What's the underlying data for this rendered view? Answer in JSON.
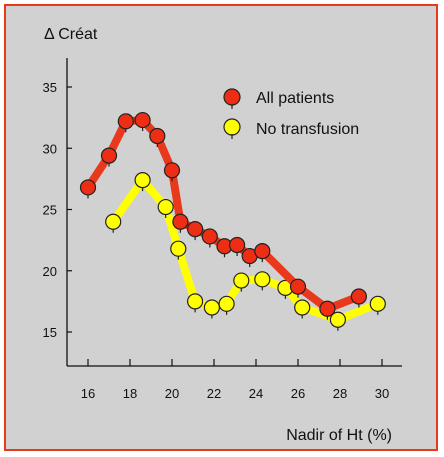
{
  "chart_data": {
    "type": "line",
    "title": "",
    "ylabel": "Δ Créat",
    "xlabel": "Nadir of Ht (%)",
    "xlim": [
      15,
      31
    ],
    "ylim": [
      12.5,
      37.5
    ],
    "x_ticks": [
      16,
      18,
      20,
      22,
      24,
      26,
      28,
      30
    ],
    "y_ticks": [
      15,
      20,
      25,
      30,
      35
    ],
    "x_tick_labels": [
      "16",
      "18",
      "20",
      "22",
      "24",
      "26",
      "28",
      "30"
    ],
    "y_tick_labels": [
      "15",
      "20",
      "25",
      "30",
      "35"
    ],
    "legend_position": "top-right",
    "series": [
      {
        "name": "All patients",
        "color": "#e8391d",
        "marker_color": "#ee2e14",
        "points": [
          {
            "x": 16.0,
            "y": 26.8
          },
          {
            "x": 17.0,
            "y": 29.4
          },
          {
            "x": 17.8,
            "y": 32.2
          },
          {
            "x": 18.6,
            "y": 32.3
          },
          {
            "x": 19.3,
            "y": 31.0
          },
          {
            "x": 20.0,
            "y": 28.2
          },
          {
            "x": 20.4,
            "y": 24.0
          },
          {
            "x": 21.1,
            "y": 23.4
          },
          {
            "x": 21.8,
            "y": 22.8
          },
          {
            "x": 22.5,
            "y": 22.0
          },
          {
            "x": 23.1,
            "y": 22.1
          },
          {
            "x": 23.7,
            "y": 21.2
          },
          {
            "x": 24.3,
            "y": 21.6
          },
          {
            "x": 26.0,
            "y": 18.7
          },
          {
            "x": 27.4,
            "y": 16.9
          },
          {
            "x": 28.9,
            "y": 17.9
          }
        ]
      },
      {
        "name": "No transfusion",
        "color": "#ffff00",
        "marker_color": "#ffff00",
        "points": [
          {
            "x": 17.2,
            "y": 24.0
          },
          {
            "x": 18.6,
            "y": 27.4
          },
          {
            "x": 19.7,
            "y": 25.2
          },
          {
            "x": 20.3,
            "y": 21.8
          },
          {
            "x": 21.1,
            "y": 17.5
          },
          {
            "x": 21.9,
            "y": 17.0
          },
          {
            "x": 22.6,
            "y": 17.3
          },
          {
            "x": 23.3,
            "y": 19.2
          },
          {
            "x": 24.3,
            "y": 19.3
          },
          {
            "x": 25.4,
            "y": 18.6
          },
          {
            "x": 26.2,
            "y": 17.0
          },
          {
            "x": 27.9,
            "y": 16.0
          },
          {
            "x": 29.8,
            "y": 17.3
          }
        ]
      }
    ]
  }
}
